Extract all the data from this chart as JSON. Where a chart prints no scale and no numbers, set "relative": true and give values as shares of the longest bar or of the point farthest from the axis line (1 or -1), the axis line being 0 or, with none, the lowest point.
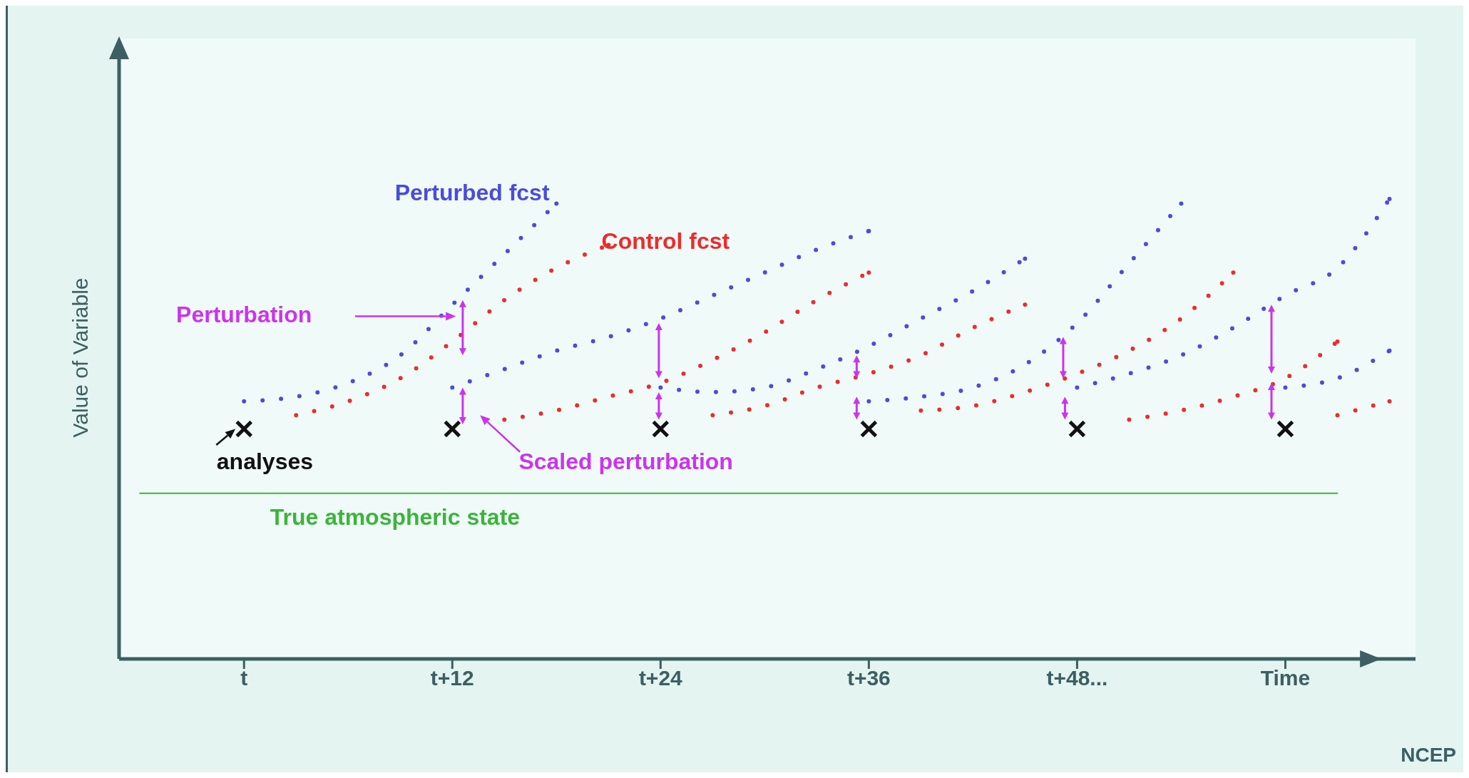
{
  "chart_data": {
    "type": "line",
    "relative": true,
    "ylabel": "Value of Variable",
    "line_style": "dotted",
    "categories": [
      null,
      null,
      "t",
      null,
      null,
      null,
      "t+12",
      null,
      null,
      null,
      "t+24",
      null,
      null,
      null,
      "t+36",
      null,
      null,
      null,
      "t+48...",
      null,
      null,
      null,
      "Time",
      null,
      null
    ],
    "series": [
      {
        "name": "Perturbed fcst",
        "color": "#4b4bdc",
        "values": [
          null,
          null,
          0.56,
          0.57,
          0.6,
          0.66,
          0.77,
          0.88,
          0.99,
          null,
          null,
          null,
          null,
          null,
          null,
          null,
          null,
          null,
          null,
          null,
          null,
          null,
          null,
          null,
          null
        ]
      },
      {
        "name": "Control fcst",
        "color": "#ee2b2b",
        "values": [
          null,
          null,
          null,
          0.53,
          0.56,
          0.61,
          0.69,
          0.78,
          0.85,
          0.9,
          null,
          null,
          null,
          null,
          null,
          null,
          null,
          null,
          null,
          null,
          null,
          null,
          null,
          null,
          null
        ]
      },
      {
        "color": "#4b4bdc",
        "values": [
          null,
          null,
          null,
          null,
          null,
          null,
          0.59,
          0.63,
          0.67,
          0.7,
          0.74,
          0.79,
          0.84,
          0.89,
          0.93,
          null,
          null,
          null,
          null,
          null,
          null,
          null,
          null,
          null,
          null
        ]
      },
      {
        "color": "#ee2b2b",
        "values": [
          null,
          null,
          null,
          null,
          null,
          null,
          null,
          0.52,
          0.54,
          0.57,
          0.6,
          0.65,
          0.71,
          0.78,
          0.84,
          null,
          null,
          null,
          null,
          null,
          null,
          null,
          null,
          null,
          null
        ]
      },
      {
        "color": "#4b4bdc",
        "values": [
          null,
          null,
          null,
          null,
          null,
          null,
          null,
          null,
          null,
          null,
          0.59,
          0.58,
          0.59,
          0.63,
          0.68,
          0.74,
          0.8,
          0.87,
          null,
          null,
          null,
          null,
          null,
          null,
          null
        ]
      },
      {
        "color": "#ee2b2b",
        "values": [
          null,
          null,
          null,
          null,
          null,
          null,
          null,
          null,
          null,
          null,
          null,
          0.53,
          0.55,
          0.59,
          0.62,
          0.66,
          0.72,
          0.77,
          null,
          null,
          null,
          null,
          null,
          null,
          null
        ]
      },
      {
        "color": "#4b4bdc",
        "values": [
          null,
          null,
          null,
          null,
          null,
          null,
          null,
          null,
          null,
          null,
          null,
          null,
          null,
          null,
          0.56,
          0.57,
          0.59,
          0.64,
          0.73,
          0.86,
          0.99,
          null,
          null,
          null,
          null
        ]
      },
      {
        "color": "#ee2b2b",
        "values": [
          null,
          null,
          null,
          null,
          null,
          null,
          null,
          null,
          null,
          null,
          null,
          null,
          null,
          null,
          null,
          0.54,
          0.55,
          0.58,
          0.62,
          0.67,
          0.74,
          0.84,
          null,
          null,
          null
        ]
      },
      {
        "color": "#4b4bdc",
        "values": [
          null,
          null,
          null,
          null,
          null,
          null,
          null,
          null,
          null,
          null,
          null,
          null,
          null,
          null,
          null,
          null,
          null,
          null,
          0.59,
          0.62,
          0.66,
          0.72,
          0.79,
          0.85,
          1
        ]
      },
      {
        "color": "#ee2b2b",
        "values": [
          null,
          null,
          null,
          null,
          null,
          null,
          null,
          null,
          null,
          null,
          null,
          null,
          null,
          null,
          null,
          null,
          null,
          null,
          null,
          0.52,
          0.54,
          0.57,
          0.61,
          0.69,
          null
        ]
      },
      {
        "color": "#4b4bdc",
        "values": [
          null,
          null,
          null,
          null,
          null,
          null,
          null,
          null,
          null,
          null,
          null,
          null,
          null,
          null,
          null,
          null,
          null,
          null,
          null,
          null,
          null,
          null,
          0.59,
          0.61,
          0.67
        ]
      },
      {
        "color": "#ee2b2b",
        "values": [
          null,
          null,
          null,
          null,
          null,
          null,
          null,
          null,
          null,
          null,
          null,
          null,
          null,
          null,
          null,
          null,
          null,
          null,
          null,
          null,
          null,
          null,
          null,
          0.53,
          0.56
        ]
      },
      {
        "name": "True atmospheric state",
        "color": "#3cb43c",
        "line_style": "solid",
        "values": [
          0.36,
          0.36,
          0.36,
          0.36,
          0.36,
          0.36,
          0.36,
          0.36,
          0.36,
          0.36,
          0.36,
          0.36,
          0.36,
          0.36,
          0.36,
          0.36,
          0.36,
          0.36,
          0.36,
          0.36,
          0.36,
          0.36,
          0.36,
          0.36,
          null
        ]
      },
      {
        "name": "analyses",
        "type": "scatter",
        "marker": "cross",
        "color": "#111111",
        "values": [
          null,
          null,
          0.5,
          null,
          null,
          null,
          0.5,
          null,
          null,
          null,
          0.5,
          null,
          null,
          null,
          0.5,
          null,
          null,
          null,
          0.5,
          null,
          null,
          null,
          0.5,
          null,
          null
        ]
      }
    ],
    "annotations": [
      "Perturbation",
      "Scaled perturbation",
      "NCEP"
    ]
  }
}
